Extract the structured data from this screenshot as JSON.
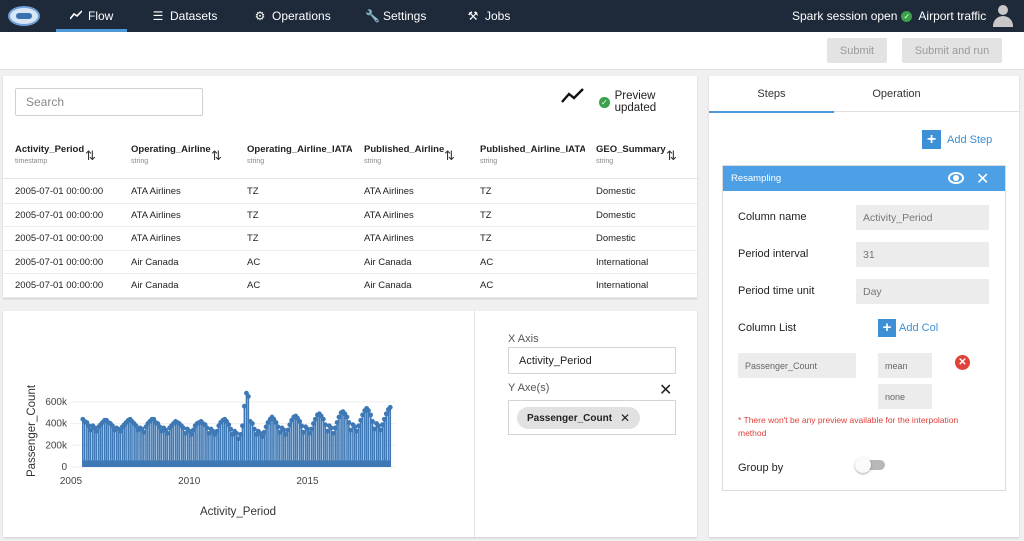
{
  "nav": {
    "items": [
      {
        "label": "Flow",
        "icon": "line-chart-icon"
      },
      {
        "label": "Datasets",
        "icon": "list-icon"
      },
      {
        "label": "Operations",
        "icon": "gear-icon"
      },
      {
        "label": "Settings",
        "icon": "wrench-icon"
      },
      {
        "label": "Jobs",
        "icon": "jobs-icon"
      }
    ],
    "spark_status": "Spark session open",
    "project": "Airport traffic"
  },
  "toolbar": {
    "submit": "Submit",
    "submit_run": "Submit and run"
  },
  "data_panel": {
    "search_placeholder": "Search",
    "preview_status": "Preview updated",
    "columns": [
      {
        "name": "Activity_Period",
        "type": "timestamp"
      },
      {
        "name": "Operating_Airline",
        "type": "string"
      },
      {
        "name": "Operating_Airline_IATA_Code",
        "type": "string"
      },
      {
        "name": "Published_Airline",
        "type": "string"
      },
      {
        "name": "Published_Airline_IATA_Code",
        "type": "string"
      },
      {
        "name": "GEO_Summary",
        "type": "string"
      }
    ],
    "rows": [
      [
        "2005-07-01 00:00:00",
        "ATA Airlines",
        "TZ",
        "ATA Airlines",
        "TZ",
        "Domestic"
      ],
      [
        "2005-07-01 00:00:00",
        "ATA Airlines",
        "TZ",
        "ATA Airlines",
        "TZ",
        "Domestic"
      ],
      [
        "2005-07-01 00:00:00",
        "ATA Airlines",
        "TZ",
        "ATA Airlines",
        "TZ",
        "Domestic"
      ],
      [
        "2005-07-01 00:00:00",
        "Air Canada",
        "AC",
        "Air Canada",
        "AC",
        "International"
      ],
      [
        "2005-07-01 00:00:00",
        "Air Canada",
        "AC",
        "Air Canada",
        "AC",
        "International"
      ]
    ]
  },
  "chart_panel": {
    "x_axis_label": "X Axis",
    "x_axis_value": "Activity_Period",
    "y_axes_label": "Y Axe(s)",
    "y_axes": [
      "Passenger_Count"
    ]
  },
  "chart_data": {
    "type": "scatter",
    "xlabel": "Activity_Period",
    "ylabel": "Passenger_Count",
    "xlim": [
      2005.5,
      2018.7
    ],
    "ylim": [
      0,
      700000
    ],
    "xticks": [
      {
        "v": 2005,
        "label": "2005"
      },
      {
        "v": 2010,
        "label": "2010"
      },
      {
        "v": 2015,
        "label": "2015"
      }
    ],
    "yticks": [
      {
        "v": 0,
        "label": "0"
      },
      {
        "v": 200000,
        "label": "200k"
      },
      {
        "v": 400000,
        "label": "400k"
      },
      {
        "v": 600000,
        "label": "600k"
      }
    ],
    "color": "#3e78b5",
    "series": [
      {
        "x": [
          2005.5,
          2005.58,
          2005.67,
          2005.75,
          2005.83,
          2005.92,
          2006.0,
          2006.08,
          2006.17,
          2006.25,
          2006.33,
          2006.42,
          2006.5,
          2006.58,
          2006.67,
          2006.75,
          2006.83,
          2006.92,
          2007.0,
          2007.08,
          2007.17,
          2007.25,
          2007.33,
          2007.42,
          2007.5,
          2007.58,
          2007.67,
          2007.75,
          2007.83,
          2007.92,
          2008.0,
          2008.08,
          2008.17,
          2008.25,
          2008.33,
          2008.42,
          2008.5,
          2008.58,
          2008.67,
          2008.75,
          2008.83,
          2008.92,
          2009.0,
          2009.08,
          2009.17,
          2009.25,
          2009.33,
          2009.42,
          2009.5,
          2009.58,
          2009.67,
          2009.75,
          2009.83,
          2009.92,
          2010.0,
          2010.08,
          2010.17,
          2010.25,
          2010.33,
          2010.42,
          2010.5,
          2010.58,
          2010.67,
          2010.75,
          2010.83,
          2010.92,
          2011.0,
          2011.08,
          2011.17,
          2011.25,
          2011.33,
          2011.42,
          2011.5,
          2011.58,
          2011.67,
          2011.75,
          2011.83,
          2011.92,
          2012.0,
          2012.08,
          2012.17,
          2012.25,
          2012.33,
          2012.42,
          2012.5,
          2012.58,
          2012.67,
          2012.75,
          2012.83,
          2012.92,
          2013.0,
          2013.08,
          2013.17,
          2013.25,
          2013.33,
          2013.42,
          2013.5,
          2013.58,
          2013.67,
          2013.75,
          2013.83,
          2013.92,
          2014.0,
          2014.08,
          2014.17,
          2014.25,
          2014.33,
          2014.42,
          2014.5,
          2014.58,
          2014.67,
          2014.75,
          2014.83,
          2014.92,
          2015.0,
          2015.08,
          2015.17,
          2015.25,
          2015.33,
          2015.42,
          2015.5,
          2015.58,
          2015.67,
          2015.75,
          2015.83,
          2015.92,
          2016.0,
          2016.08,
          2016.17,
          2016.25,
          2016.33,
          2016.42,
          2016.5,
          2016.58,
          2016.67,
          2016.75,
          2016.83,
          2016.92,
          2017.0,
          2017.08,
          2017.17,
          2017.25,
          2017.33,
          2017.42,
          2017.5,
          2017.58,
          2017.67,
          2017.75,
          2017.83,
          2017.92,
          2018.0,
          2018.08,
          2018.17,
          2018.25,
          2018.33,
          2018.42,
          2018.5
        ],
        "y": [
          440000,
          420000,
          410000,
          380000,
          340000,
          380000,
          360000,
          330000,
          370000,
          390000,
          410000,
          430000,
          430000,
          410000,
          400000,
          380000,
          340000,
          360000,
          350000,
          330000,
          370000,
          390000,
          410000,
          430000,
          440000,
          420000,
          400000,
          380000,
          340000,
          360000,
          350000,
          320000,
          370000,
          400000,
          420000,
          440000,
          440000,
          410000,
          400000,
          370000,
          330000,
          360000,
          340000,
          310000,
          360000,
          380000,
          400000,
          420000,
          410000,
          400000,
          380000,
          360000,
          310000,
          350000,
          330000,
          300000,
          340000,
          380000,
          400000,
          410000,
          420000,
          400000,
          390000,
          360000,
          310000,
          350000,
          330000,
          300000,
          330000,
          380000,
          410000,
          430000,
          440000,
          420000,
          390000,
          350000,
          300000,
          330000,
          310000,
          260000,
          300000,
          380000,
          560000,
          680000,
          650000,
          420000,
          400000,
          350000,
          300000,
          330000,
          310000,
          280000,
          320000,
          370000,
          410000,
          440000,
          460000,
          440000,
          410000,
          370000,
          320000,
          360000,
          340000,
          300000,
          340000,
          390000,
          430000,
          460000,
          470000,
          450000,
          420000,
          380000,
          320000,
          370000,
          350000,
          310000,
          350000,
          400000,
          440000,
          480000,
          490000,
          470000,
          440000,
          390000,
          330000,
          380000,
          360000,
          310000,
          360000,
          410000,
          460000,
          500000,
          510000,
          490000,
          460000,
          410000,
          340000,
          390000,
          370000,
          330000,
          380000,
          430000,
          480000,
          520000,
          540000,
          520000,
          480000,
          420000,
          350000,
          400000,
          380000,
          340000,
          390000,
          440000,
          490000,
          530000,
          550000
        ]
      }
    ]
  },
  "steps_panel": {
    "tabs": [
      "Steps",
      "Operation"
    ],
    "add_step": "Add Step",
    "card": {
      "title": "Resampling",
      "column_name_label": "Column name",
      "column_name_value": "Activity_Period",
      "period_interval_label": "Period interval",
      "period_interval_value": "31",
      "period_unit_label": "Period time unit",
      "period_unit_value": "Day",
      "column_list_label": "Column List",
      "add_col": "Add Col",
      "column_list": [
        {
          "column": "Passenger_Count",
          "agg": "mean",
          "interp": "none"
        }
      ],
      "warning": "* There won't be any preview available for the interpolation method",
      "group_by_label": "Group by",
      "group_by_on": false
    }
  }
}
